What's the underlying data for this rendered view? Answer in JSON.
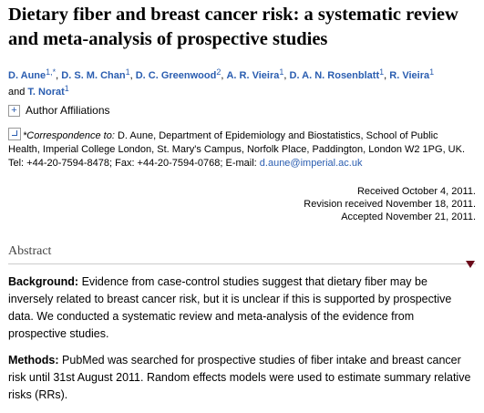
{
  "title": "Dietary fiber and breast cancer risk: a systematic review and meta-analysis of prospective studies",
  "authors": {
    "list": [
      {
        "name": "D. Aune",
        "sup": "1,*"
      },
      {
        "name": "D. S. M. Chan",
        "sup": "1"
      },
      {
        "name": "D. C. Greenwood",
        "sup": "2"
      },
      {
        "name": "A. R. Vieira",
        "sup": "1"
      },
      {
        "name": "D. A. N. Rosenblatt",
        "sup": "1"
      },
      {
        "name": "R. Vieira",
        "sup": "1"
      },
      {
        "name": "T. Norat",
        "sup": "1"
      }
    ],
    "separator": ", ",
    "conjunction": "and"
  },
  "affiliations": {
    "toggle": "+",
    "label": "Author Affiliations"
  },
  "correspondence": {
    "label": "*Correspondence to:",
    "text": " D. Aune, Department of Epidemiology and Biostatistics, School of Public Health, Imperial College London, St. Mary's Campus, Norfolk Place, Paddington, London W2 1PG, UK. Tel: +44-20-7594-8478; Fax: +44-20-7594-0768; E-mail: ",
    "email": "d.aune@imperial.ac.uk"
  },
  "history": [
    "Received October 4, 2011.",
    "Revision received November 18, 2011.",
    "Accepted November 21, 2011."
  ],
  "abstract": {
    "heading": "Abstract",
    "sections": [
      {
        "label": "Background:",
        "text": " Evidence from case-control studies suggest that dietary fiber may be inversely related to breast cancer risk, but it is unclear if this is supported by prospective data. We conducted a systematic review and meta-analysis of the evidence from prospective studies."
      },
      {
        "label": "Methods:",
        "text": " PubMed was searched for prospective studies of fiber intake and breast cancer risk until 31st August 2011. Random effects models were used to estimate summary relative risks (RRs)."
      }
    ]
  }
}
